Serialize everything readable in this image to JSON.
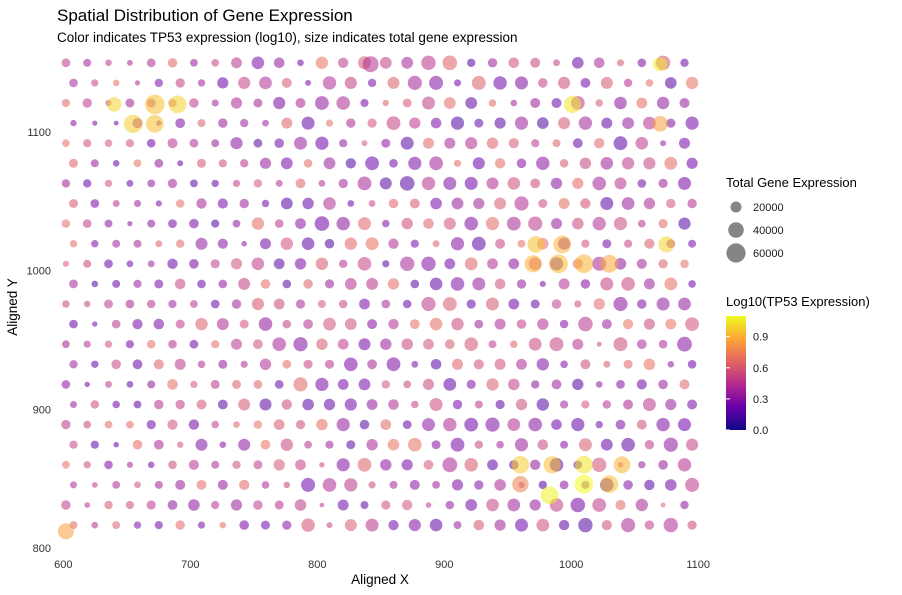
{
  "chart_data": {
    "type": "scatter",
    "title": "Spatial Distribution of Gene Expression",
    "subtitle": "Color indicates TP53 expression (log10), size indicates total gene expression",
    "xlabel": "Aligned X",
    "ylabel": "Aligned Y",
    "xlim": [
      595,
      1103
    ],
    "ylim": [
      800,
      1152
    ],
    "x_ticks": [
      600,
      700,
      800,
      900,
      1000,
      1100
    ],
    "y_ticks": [
      800,
      900,
      1000,
      1100
    ],
    "grid": false,
    "size_legend": {
      "title": "Total Gene Expression",
      "entries": [
        20000,
        40000,
        60000
      ],
      "entry_labels": [
        "20000",
        "40000",
        "60000"
      ]
    },
    "color_legend": {
      "title": "Log10(TP53 Expression)",
      "colormap": "plasma",
      "range": [
        0,
        1.1
      ],
      "ticks": [
        0.0,
        0.3,
        0.6,
        0.9
      ],
      "tick_labels": [
        "0.0",
        "0.3",
        "0.6",
        "0.9"
      ],
      "colors": [
        "#0d0887",
        "#6a00a8",
        "#b12a90",
        "#e16462",
        "#fca636",
        "#f0f921"
      ]
    },
    "grid_layout": {
      "row_y_start": 1150,
      "row_y_step": -14.5,
      "rows": 24,
      "even_row_x_start": 602,
      "odd_row_x_start": 608,
      "col_x_step": 16.8,
      "cols": 30
    },
    "highlights": [
      {
        "x": 672,
        "y": 1120,
        "total": 62000,
        "tp53": 0.95
      },
      {
        "x": 690,
        "y": 1120,
        "total": 52000,
        "tp53": 1.0
      },
      {
        "x": 655,
        "y": 1106,
        "total": 55000,
        "tp53": 0.98
      },
      {
        "x": 672,
        "y": 1106,
        "total": 52000,
        "tp53": 0.95
      },
      {
        "x": 640,
        "y": 1120,
        "total": 35000,
        "tp53": 1.0
      },
      {
        "x": 842,
        "y": 1149,
        "total": 42000,
        "tp53": 0.45
      },
      {
        "x": 1001,
        "y": 1120,
        "total": 48000,
        "tp53": 1.05
      },
      {
        "x": 1070,
        "y": 1149,
        "total": 32000,
        "tp53": 1.05
      },
      {
        "x": 1070,
        "y": 1106,
        "total": 40000,
        "tp53": 0.85
      },
      {
        "x": 990,
        "y": 1005,
        "total": 58000,
        "tp53": 0.95
      },
      {
        "x": 1010,
        "y": 1005,
        "total": 56000,
        "tp53": 0.92
      },
      {
        "x": 1030,
        "y": 1005,
        "total": 52000,
        "tp53": 0.88
      },
      {
        "x": 970,
        "y": 1005,
        "total": 48000,
        "tp53": 0.9
      },
      {
        "x": 972,
        "y": 1019,
        "total": 45000,
        "tp53": 0.95
      },
      {
        "x": 993,
        "y": 1019,
        "total": 52000,
        "tp53": 0.92
      },
      {
        "x": 1075,
        "y": 1019,
        "total": 42000,
        "tp53": 1.0
      },
      {
        "x": 1010,
        "y": 846,
        "total": 58000,
        "tp53": 1.1
      },
      {
        "x": 983,
        "y": 838,
        "total": 52000,
        "tp53": 1.08
      },
      {
        "x": 1030,
        "y": 846,
        "total": 52000,
        "tp53": 0.95
      },
      {
        "x": 960,
        "y": 860,
        "total": 50000,
        "tp53": 0.98
      },
      {
        "x": 1010,
        "y": 860,
        "total": 52000,
        "tp53": 1.05
      },
      {
        "x": 985,
        "y": 860,
        "total": 48000,
        "tp53": 0.95
      },
      {
        "x": 1040,
        "y": 860,
        "total": 46000,
        "tp53": 0.92
      },
      {
        "x": 960,
        "y": 846,
        "total": 44000,
        "tp53": 0.75
      },
      {
        "x": 602,
        "y": 812,
        "total": 42000,
        "tp53": 0.85
      }
    ]
  }
}
